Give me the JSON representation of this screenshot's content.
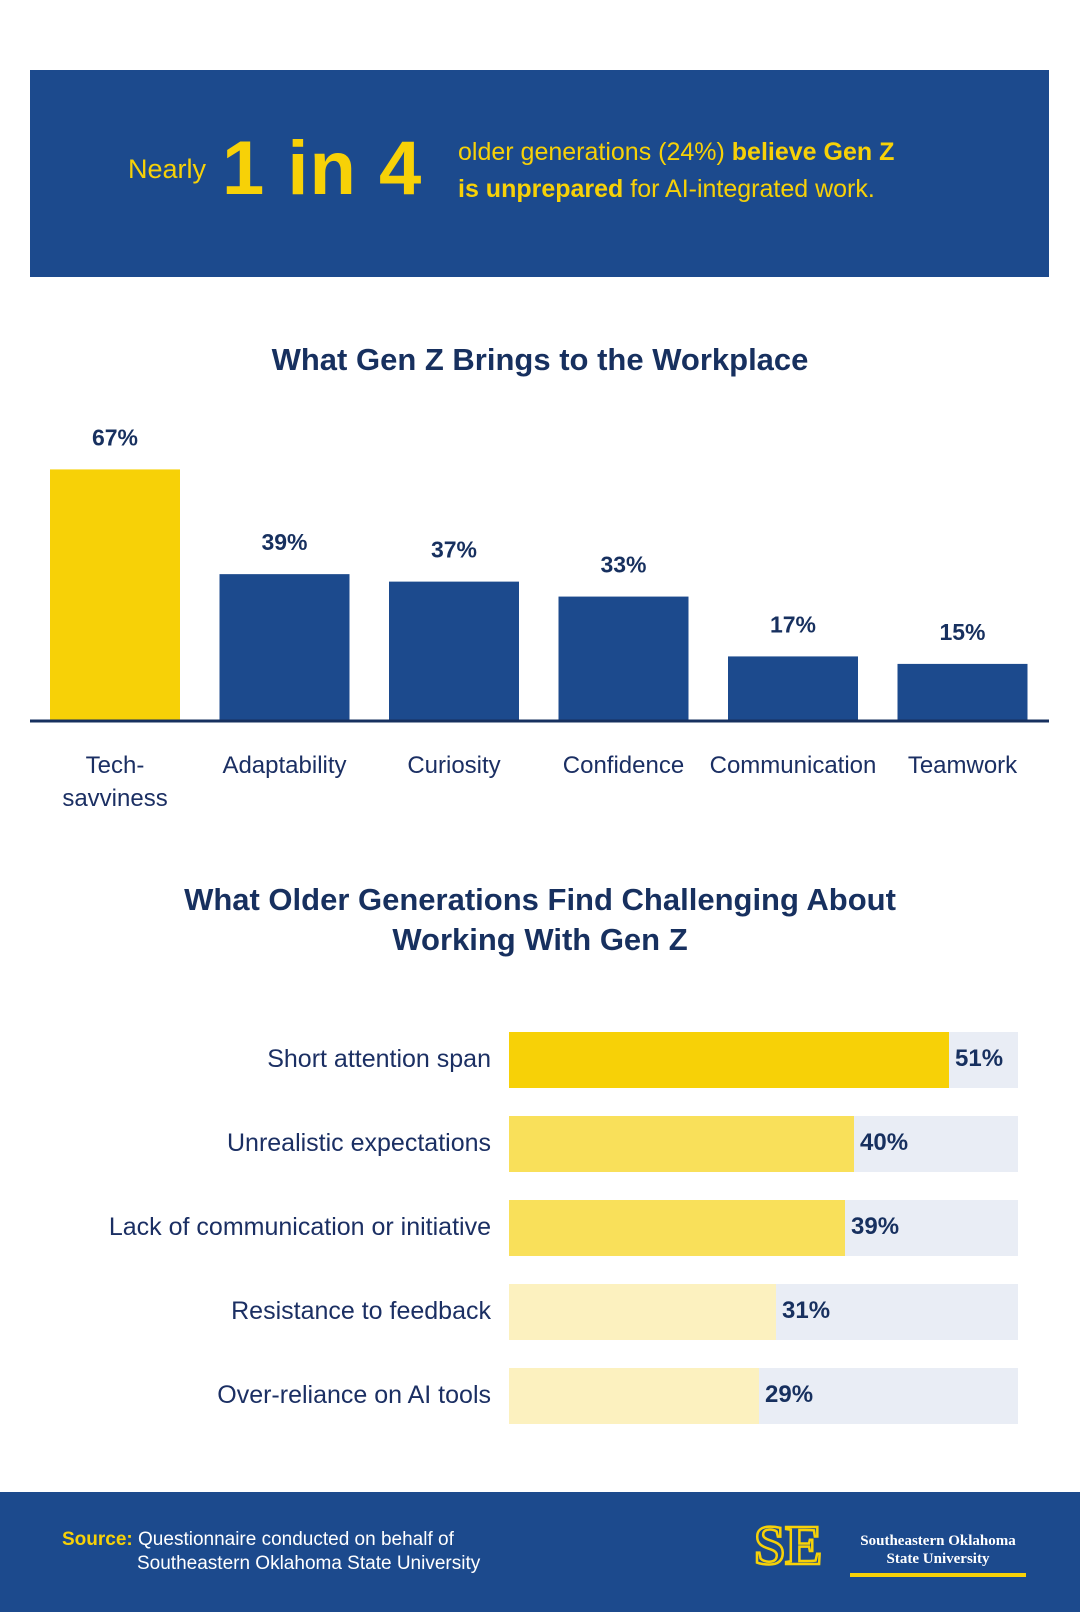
{
  "banner": {
    "nearly": "Nearly",
    "big": "1 in 4",
    "stat_regular1": "older generations (24%) ",
    "stat_bold1": "believe Gen Z",
    "stat_bold2": "is unprepared",
    "stat_regular2": " for AI-integrated work."
  },
  "colors": {
    "navy": "#1c4a8d",
    "dark_navy": "#17305f",
    "yellow": "#f7d107",
    "yellow_mid": "#f9e05a",
    "yellow_light": "#fcf1bf",
    "track": "#e9edf5"
  },
  "chart_data": [
    {
      "type": "bar",
      "title": "What Gen Z Brings to the Workplace",
      "categories": [
        "Tech-savviness",
        "Adaptability",
        "Curiosity",
        "Confidence",
        "Communication",
        "Teamwork"
      ],
      "category_lines": [
        [
          "Tech-",
          "savviness"
        ],
        [
          "Adaptability"
        ],
        [
          "Curiosity"
        ],
        [
          "Confidence"
        ],
        [
          "Communication"
        ],
        [
          "Teamwork"
        ]
      ],
      "values": [
        67,
        39,
        37,
        33,
        17,
        15
      ],
      "value_labels": [
        "67%",
        "39%",
        "37%",
        "33%",
        "17%",
        "15%"
      ],
      "bar_colors": [
        "#f7d107",
        "#1c4a8d",
        "#1c4a8d",
        "#1c4a8d",
        "#1c4a8d",
        "#1c4a8d"
      ],
      "xlabel": "",
      "ylabel": "",
      "grid": false,
      "legend": "none"
    },
    {
      "type": "bar",
      "orientation": "horizontal",
      "title": "What Older Generations Find Challenging About Working With Gen Z",
      "categories": [
        "Short attention span",
        "Unrealistic expectations",
        "Lack of communication or initiative",
        "Resistance to feedback",
        "Over-reliance on AI tools"
      ],
      "values": [
        51,
        40,
        39,
        31,
        29
      ],
      "value_labels": [
        "51%",
        "40%",
        "39%",
        "31%",
        "29%"
      ],
      "bar_colors": [
        "#f7d107",
        "#f9e05a",
        "#f9e05a",
        "#fcf1bf",
        "#fcf1bf"
      ],
      "xlim": [
        0,
        59
      ],
      "xlabel": "",
      "ylabel": "",
      "grid": false,
      "legend": "none"
    }
  ],
  "chart1_title_text": "What Gen Z Brings to the Workplace",
  "chart2_title": {
    "line1": "What Older Generations Find Challenging About",
    "line2": "Working With Gen Z"
  },
  "footer": {
    "source_label": "Source:",
    "source_line1": " Questionnaire conducted on behalf of",
    "source_line2": "Southeastern Oklahoma State University",
    "logo_line1": "Southeastern Oklahoma",
    "logo_line2": "State University",
    "logo_mark": "SE"
  }
}
